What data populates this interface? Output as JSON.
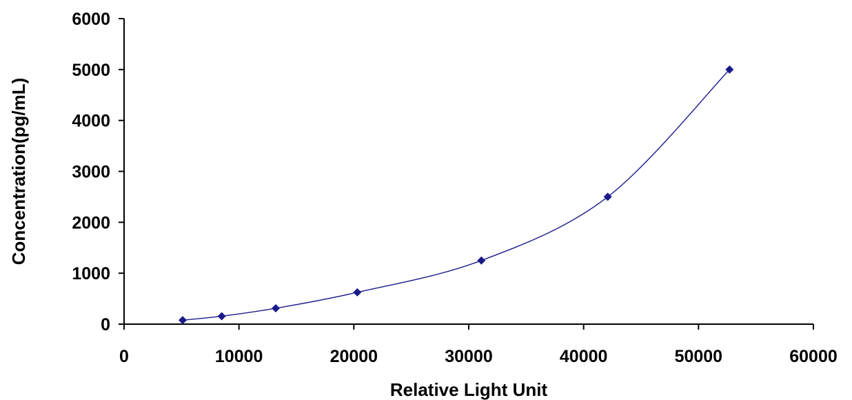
{
  "chart_data": {
    "type": "line",
    "xlabel": "Relative Light Unit",
    "ylabel": "Concentration(pg/mL)",
    "xlim": [
      0,
      60000
    ],
    "ylim": [
      0,
      6000
    ],
    "x_ticks": [
      0,
      10000,
      20000,
      30000,
      40000,
      50000,
      60000
    ],
    "y_ticks": [
      0,
      1000,
      2000,
      3000,
      4000,
      5000,
      6000
    ],
    "grid": false,
    "series": [
      {
        "x": [
          5100,
          8500,
          13200,
          20300,
          31100,
          42100,
          52700
        ],
        "y": [
          78,
          156,
          312,
          625,
          1250,
          2500,
          5000
        ],
        "marker": "diamond",
        "smooth": true
      }
    ],
    "colors": {
      "series": "#1a1a8c",
      "axis": "#000000"
    }
  }
}
